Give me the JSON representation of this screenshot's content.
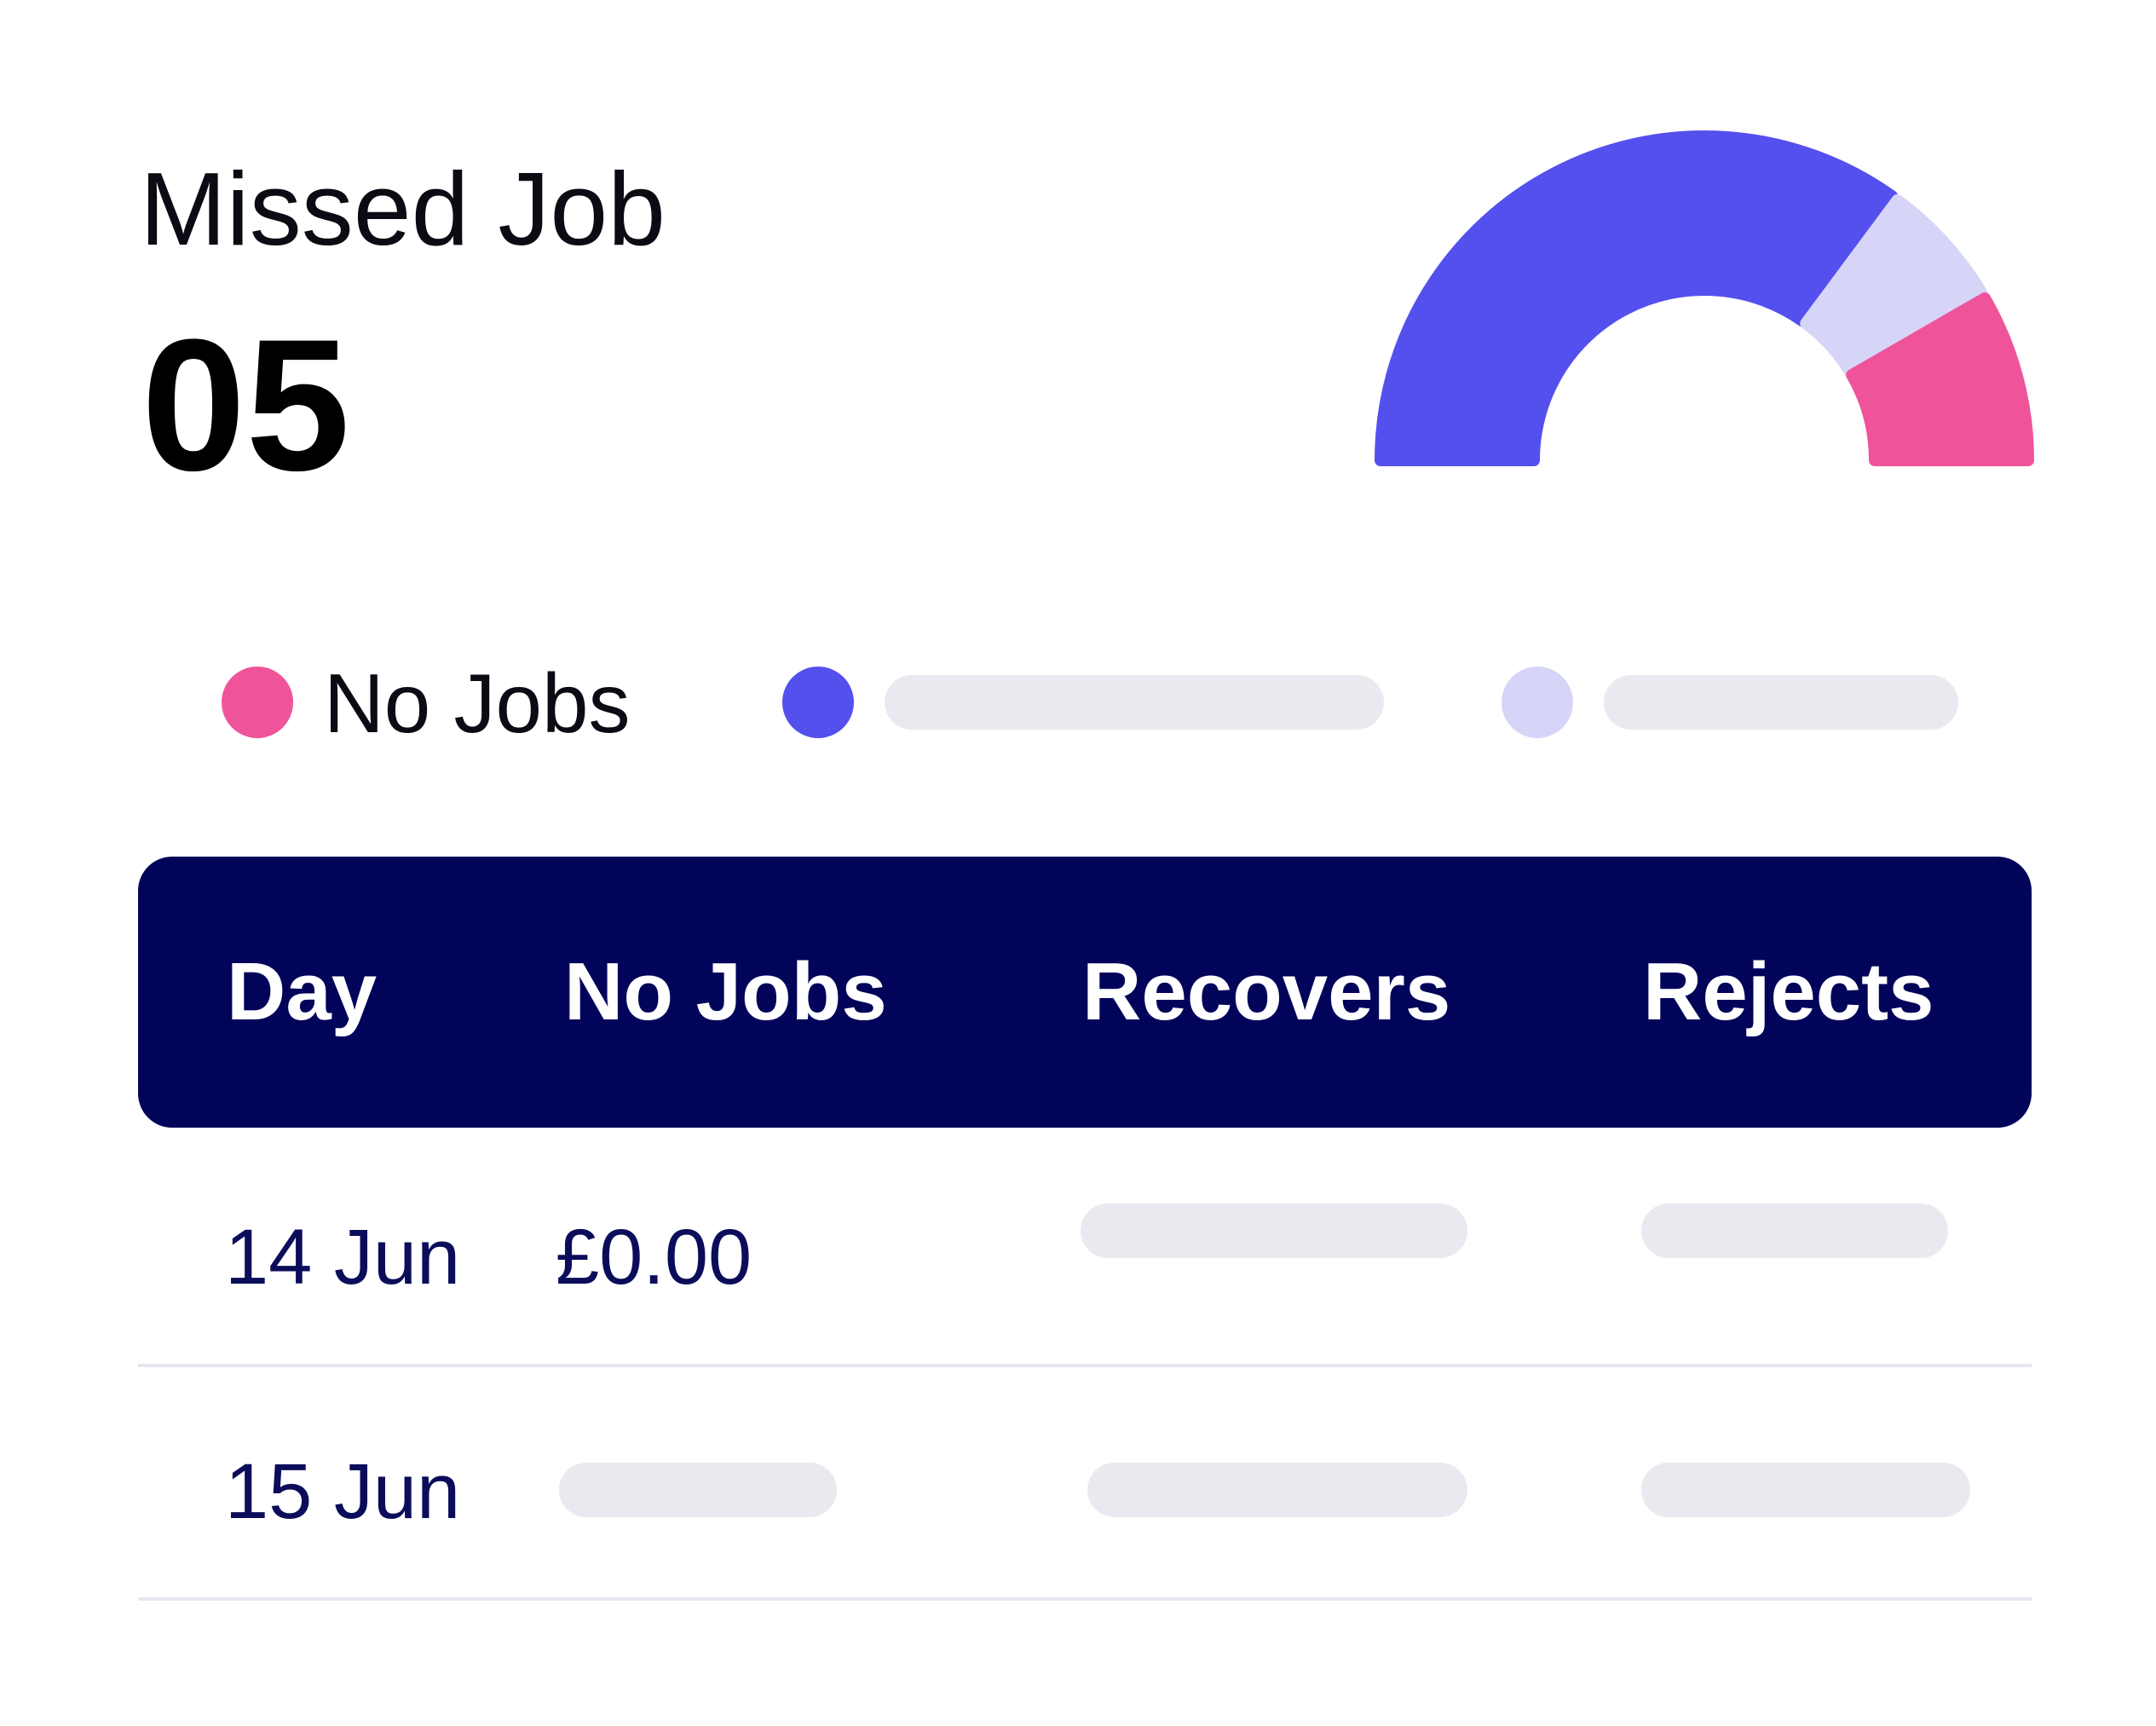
{
  "card": {
    "title": "Missed Job",
    "value": "05"
  },
  "gauge": {
    "segments": [
      {
        "name": "primary",
        "fraction": 0.7,
        "color": "#5450ee"
      },
      {
        "name": "secondary",
        "fraction": 0.13,
        "color": "#d6d5f8"
      },
      {
        "name": "No Jobs",
        "fraction": 0.17,
        "color": "#ef539a"
      }
    ]
  },
  "legend": {
    "items": [
      {
        "label": "No Jobs",
        "color": "#ef539a"
      },
      {
        "label": "",
        "color": "#5450ee"
      },
      {
        "label": "",
        "color": "#d6d5f8"
      }
    ]
  },
  "table": {
    "headers": [
      "Day",
      "No Jobs",
      "Recovers",
      "Rejects"
    ],
    "rows": [
      {
        "day": "14 Jun",
        "no_jobs": "£0.00",
        "recovers": "",
        "rejects": ""
      },
      {
        "day": "15 Jun",
        "no_jobs": "",
        "recovers": "",
        "rejects": ""
      }
    ]
  },
  "colors": {
    "header_bg": "#02045a",
    "placeholder": "#e9e9f0",
    "accent_pink": "#ef539a",
    "accent_blue": "#5450ee",
    "accent_lavender": "#d6d5f8"
  }
}
